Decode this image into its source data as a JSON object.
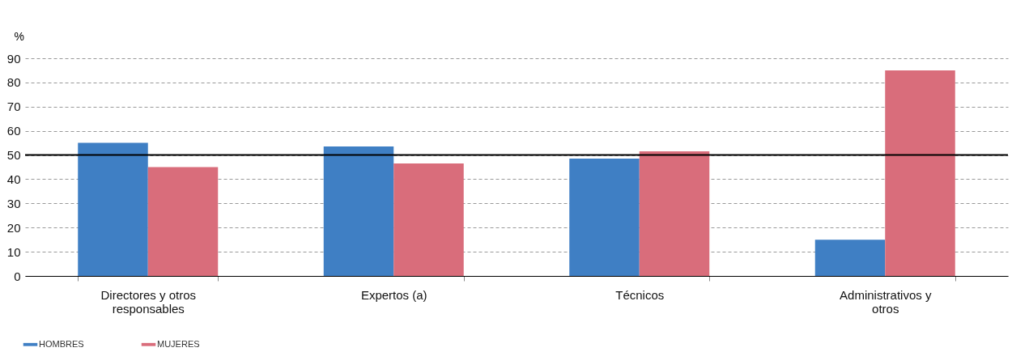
{
  "chart_data": {
    "type": "bar",
    "ylabel": "%",
    "categories": [
      "Directores y otros responsables",
      "Expertos (a)",
      "Técnicos",
      "Administrativos y otros"
    ],
    "series": [
      {
        "name": "HOMBRES",
        "color": "#3f7fc4",
        "values": [
          55,
          53.5,
          48.5,
          15
        ]
      },
      {
        "name": "MUJERES",
        "color": "#d96d7b",
        "values": [
          45,
          46.5,
          51.5,
          85
        ]
      }
    ],
    "ylim": [
      0,
      90
    ],
    "yticks": [
      0,
      10,
      20,
      30,
      40,
      50,
      60,
      70,
      80,
      90
    ],
    "grid": "y",
    "legend": "bottom left",
    "ref_lines": [
      {
        "axis": "y",
        "value": 50,
        "color": "#000000"
      }
    ]
  }
}
